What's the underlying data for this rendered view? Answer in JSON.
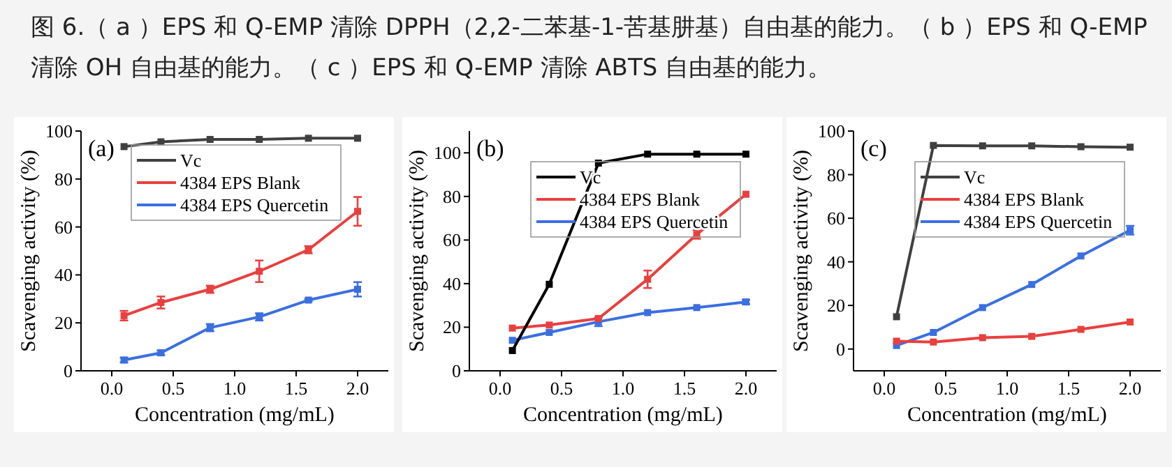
{
  "chart_data": [
    {
      "type": "line",
      "title": "图 6.（ a ）EPS 和 Q-EMP 清除 DPPH（2,2-二苯基-1-苦基肼基）自由基的能力。（ b ）EPS 和 Q-EMP 清除 OH 自由基的能力。（ c ）EPS 和 Q-EMP 清除 ABTS 自由基的能力。",
      "xlabel": "Concentration (mg/mL)",
      "ylabel": "Scavenging activity (%)",
      "annotations": [
        "(a)"
      ],
      "marker": "square",
      "legend": "top left",
      "grid": false,
      "x": [
        0.1,
        0.4,
        0.8,
        1.2,
        1.6,
        2.0
      ],
      "xlim": [
        -0.25,
        2.25
      ],
      "ylim": [
        0,
        100
      ],
      "xticks": [
        {
          "value": 0,
          "label": "0.0"
        },
        {
          "value": 0.5,
          "label": "0.5"
        },
        {
          "value": 1,
          "label": "1.0"
        },
        {
          "value": 1.5,
          "label": "1.5"
        },
        {
          "value": 2,
          "label": "2.0"
        }
      ],
      "yticks": [
        0,
        20,
        40,
        60,
        80,
        100
      ],
      "series": [
        {
          "name": "Vc",
          "color": "#404040",
          "values": [
            93.5,
            95.5,
            96.5,
            96.5,
            97,
            97
          ]
        },
        {
          "name": "4384 EPS Blank",
          "color": "#e8403f",
          "values": [
            23,
            28.5,
            34,
            41.5,
            50.5,
            66.5
          ],
          "errors": [
            2,
            2.5,
            1.5,
            4.5,
            1.5,
            6
          ]
        },
        {
          "name": "4384 EPS Quercetin",
          "color": "#3b6fe0",
          "values": [
            4.5,
            7.5,
            18,
            22.5,
            29.5,
            34
          ],
          "errors": [
            1,
            1,
            1.5,
            1.5,
            0.5,
            3
          ]
        }
      ]
    },
    {
      "type": "line",
      "xlabel": "Concentration (mg/mL)",
      "ylabel": "Scavenging activity (%)",
      "annotations": [
        "(b)"
      ],
      "marker": "square",
      "legend": "top right",
      "grid": false,
      "x": [
        0.1,
        0.4,
        0.8,
        1.2,
        1.6,
        2.0
      ],
      "xlim": [
        -0.25,
        2.25
      ],
      "ylim": [
        0,
        110
      ],
      "xticks": [
        {
          "value": 0,
          "label": "0.0"
        },
        {
          "value": 0.5,
          "label": "0.5"
        },
        {
          "value": 1,
          "label": "1.0"
        },
        {
          "value": 1.5,
          "label": "1.5"
        },
        {
          "value": 2,
          "label": "2.0"
        }
      ],
      "yticks": [
        0,
        20,
        40,
        60,
        80,
        100
      ],
      "series": [
        {
          "name": "Vc",
          "color": "#000000",
          "values": [
            9.3,
            39.7,
            95.3,
            99.4,
            99.4,
            99.4
          ]
        },
        {
          "name": "4384 EPS Blank",
          "color": "#e8403f",
          "values": [
            19.6,
            21,
            24,
            42,
            62.6,
            81
          ],
          "errors": [
            null,
            null,
            null,
            4,
            2,
            null
          ]
        },
        {
          "name": "4384 EPS Quercetin",
          "color": "#3b6fe0",
          "values": [
            14,
            17.6,
            22.5,
            26.7,
            29,
            31.6
          ],
          "errors": [
            null,
            null,
            2,
            null,
            null,
            1
          ]
        }
      ]
    },
    {
      "type": "line",
      "xlabel": "Concentration (mg/mL)",
      "ylabel": "Scavenging activity (%)",
      "annotations": [
        "(c)"
      ],
      "marker": "square",
      "legend": "top right",
      "grid": false,
      "x": [
        0.1,
        0.4,
        0.8,
        1.2,
        1.6,
        2.0
      ],
      "xlim": [
        -0.25,
        2.25
      ],
      "ylim": [
        -10,
        100
      ],
      "xticks": [
        {
          "value": 0,
          "label": "0.0"
        },
        {
          "value": 0.5,
          "label": "0.5"
        },
        {
          "value": 1,
          "label": "1.0"
        },
        {
          "value": 1.5,
          "label": "1.5"
        },
        {
          "value": 2,
          "label": "2.0"
        }
      ],
      "yticks": [
        0,
        20,
        40,
        60,
        80,
        100
      ],
      "series": [
        {
          "name": "Vc",
          "color": "#404040",
          "values": [
            14.8,
            93.4,
            93.2,
            93.2,
            92.8,
            92.6
          ]
        },
        {
          "name": "4384 EPS Blank",
          "color": "#e8403f",
          "values": [
            3.6,
            3.2,
            5.2,
            5.8,
            9,
            12.4
          ]
        },
        {
          "name": "4384 EPS Quercetin",
          "color": "#3b6fe0",
          "values": [
            1.6,
            7.6,
            19,
            29.6,
            42.7,
            54.5
          ],
          "errors": [
            null,
            null,
            null,
            null,
            null,
            2
          ]
        }
      ]
    }
  ]
}
